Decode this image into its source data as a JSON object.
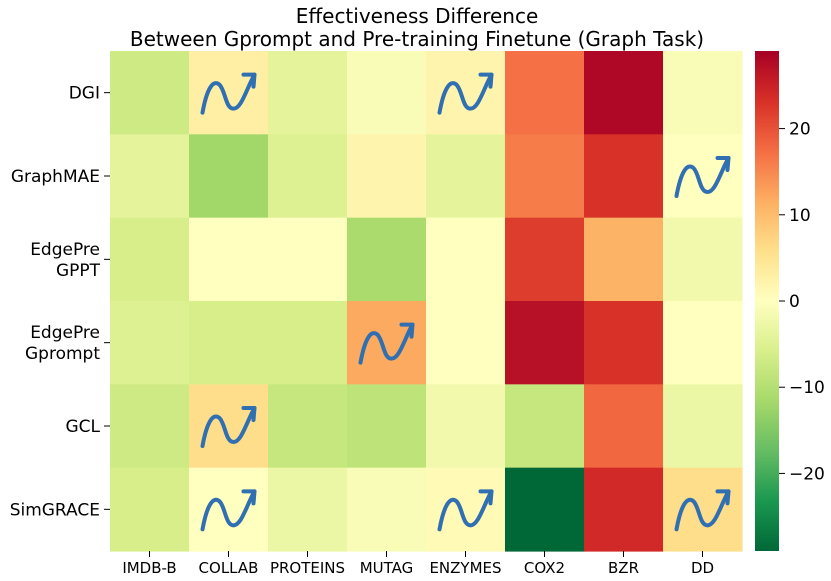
{
  "chart_data": {
    "type": "heatmap",
    "title": [
      "Effectiveness Difference",
      "Between Gprompt and Pre-training Finetune (Graph Task)"
    ],
    "xlabel": "",
    "ylabel": "",
    "columns": [
      "IMDB-B",
      "COLLAB",
      "PROTEINS",
      "MUTAG",
      "ENZYMES",
      "COX2",
      "BZR",
      "DD"
    ],
    "rows": [
      {
        "label": [
          "DGI"
        ],
        "values": [
          -7,
          3,
          -4,
          -1,
          2,
          17,
          28,
          -1
        ]
      },
      {
        "label": [
          "GraphMAE"
        ],
        "values": [
          -4,
          -12,
          -5,
          2,
          -4,
          16,
          23,
          0
        ]
      },
      {
        "label": [
          "EdgePre",
          "GPPT"
        ],
        "values": [
          -6,
          0,
          0,
          -11,
          0,
          22,
          11,
          -2
        ]
      },
      {
        "label": [
          "EdgePre",
          "Gprompt"
        ],
        "values": [
          -5,
          -6,
          -6,
          12,
          0,
          27,
          23,
          0
        ]
      },
      {
        "label": [
          "GCL"
        ],
        "values": [
          -7,
          6,
          -8,
          -9,
          -2,
          -8,
          18,
          -3
        ]
      },
      {
        "label": [
          "SimGRACE"
        ],
        "values": [
          -6,
          0,
          -3,
          -1,
          1,
          -29,
          24,
          6
        ]
      }
    ],
    "markers": [
      {
        "row": 0,
        "col": 1,
        "icon": "trend-up-arrow"
      },
      {
        "row": 0,
        "col": 4,
        "icon": "trend-up-arrow"
      },
      {
        "row": 1,
        "col": 7,
        "icon": "trend-up-arrow"
      },
      {
        "row": 3,
        "col": 3,
        "icon": "trend-up-arrow"
      },
      {
        "row": 4,
        "col": 1,
        "icon": "trend-up-arrow"
      },
      {
        "row": 5,
        "col": 1,
        "icon": "trend-up-arrow"
      },
      {
        "row": 5,
        "col": 4,
        "icon": "trend-up-arrow"
      },
      {
        "row": 5,
        "col": 7,
        "icon": "trend-up-arrow"
      }
    ],
    "colorbar": {
      "vmin": -29,
      "vmax": 29,
      "ticks": [
        20,
        10,
        0,
        -10,
        -20
      ],
      "tick_labels": [
        "20",
        "10",
        "0",
        "−10",
        "−20"
      ],
      "colormap": "RdYlGn_r"
    }
  }
}
